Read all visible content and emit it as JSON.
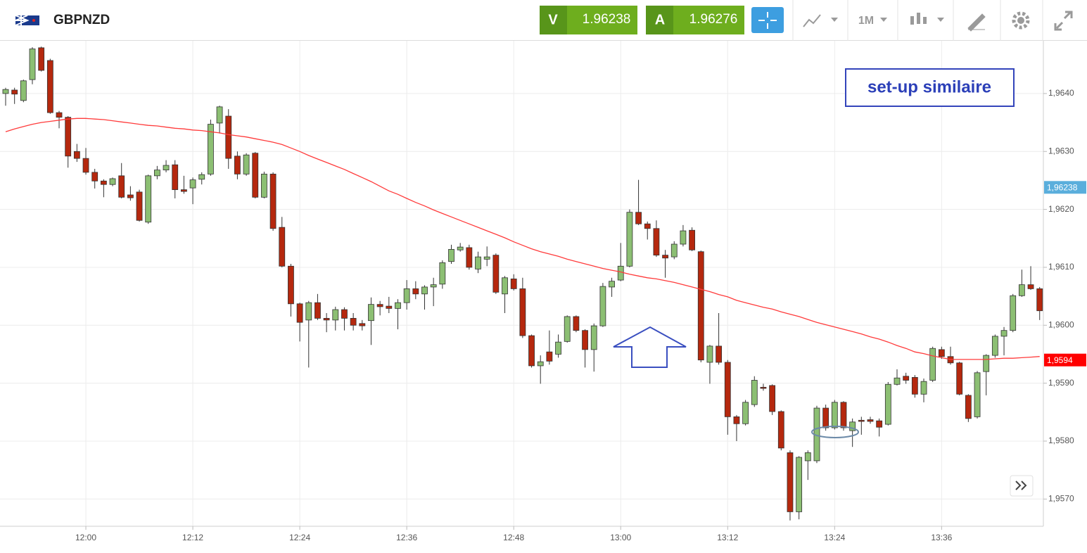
{
  "header": {
    "symbol": "GBPNZD",
    "sell_label": "V",
    "sell_price": 1.96238,
    "buy_label": "A",
    "buy_price": 1.96276,
    "timeframe": "1M"
  },
  "chart_data": {
    "type": "candlestick",
    "annotation": "set-up similaire",
    "categories": [
      null,
      null,
      null,
      null,
      null,
      null,
      null,
      null,
      null,
      "12:00",
      null,
      null,
      null,
      null,
      null,
      null,
      null,
      null,
      null,
      null,
      null,
      "12:12",
      null,
      null,
      null,
      null,
      null,
      null,
      null,
      null,
      null,
      null,
      null,
      "12:24",
      null,
      null,
      null,
      null,
      null,
      null,
      null,
      null,
      null,
      null,
      null,
      "12:36",
      null,
      null,
      null,
      null,
      null,
      null,
      null,
      null,
      null,
      null,
      null,
      "12:48",
      null,
      null,
      null,
      null,
      null,
      null,
      null,
      null,
      null,
      null,
      null,
      "13:00",
      null,
      null,
      null,
      null,
      null,
      null,
      null,
      null,
      null,
      null,
      null,
      "13:12",
      null,
      null,
      null,
      null,
      null,
      null,
      null,
      null,
      null,
      null,
      null,
      "13:24",
      null,
      null,
      null,
      null,
      null,
      null,
      null,
      null,
      null,
      null,
      null,
      "13:36",
      null,
      null,
      null,
      null,
      null,
      null,
      null,
      null,
      null,
      null,
      null
    ],
    "open": [
      1.964,
      1.96406,
      1.96388,
      1.96424,
      1.96479,
      1.96457,
      1.96367,
      1.96359,
      1.963,
      1.96288,
      1.96264,
      1.96249,
      1.96243,
      1.96258,
      1.96225,
      1.9623,
      1.96178,
      1.96258,
      1.96268,
      1.96277,
      1.96234,
      1.96237,
      1.96252,
      1.96261,
      1.96349,
      1.96361,
      1.96292,
      1.96261,
      1.96297,
      1.96221,
      1.96261,
      1.96169,
      1.96102,
      1.96037,
      1.96009,
      1.96039,
      1.96012,
      1.96009,
      1.96027,
      1.96012,
      1.96003,
      1.96008,
      1.96036,
      1.96033,
      1.96029,
      1.96039,
      1.96063,
      1.96054,
      1.96066,
      1.96071,
      1.9611,
      1.9613,
      1.96134,
      1.96097,
      1.96114,
      1.96121,
      1.96054,
      1.9608,
      1.96063,
      1.95982,
      1.9593,
      1.95954,
      1.9595,
      1.95972,
      1.96015,
      1.95991,
      1.95958,
      1.95999,
      1.96066,
      1.96078,
      1.96102,
      1.96195,
      1.96175,
      1.96167,
      1.96121,
      1.96118,
      1.9614,
      1.96164,
      1.96127,
      1.95936,
      1.95964,
      1.95936,
      1.95842,
      1.9583,
      1.95863,
      1.95893,
      1.95896,
      1.95851,
      1.9578,
      1.95678,
      1.95766,
      1.95766,
      1.95857,
      1.95823,
      1.95867,
      1.95818,
      1.95836,
      1.95837,
      1.95835,
      1.95829,
      1.95898,
      1.95912,
      1.9591,
      1.95881,
      1.95905,
      1.95958,
      1.95946,
      1.95935,
      1.95879,
      1.95842,
      1.9592,
      1.95948,
      1.95981,
      1.95991,
      1.96051,
      1.9607,
      1.96063
    ],
    "high": [
      1.9641,
      1.9641,
      1.96424,
      1.9648,
      1.96481,
      1.9646,
      1.9637,
      1.96361,
      1.96313,
      1.96306,
      1.9627,
      1.96252,
      1.96255,
      1.9628,
      1.9624,
      1.96234,
      1.9626,
      1.96275,
      1.96285,
      1.96285,
      1.96258,
      1.96255,
      1.96264,
      1.96355,
      1.96379,
      1.96373,
      1.963,
      1.96297,
      1.96299,
      1.96265,
      1.96264,
      1.96187,
      1.96106,
      1.96039,
      1.96042,
      1.96054,
      1.96021,
      1.96032,
      1.96031,
      1.96021,
      1.96009,
      1.96048,
      1.96042,
      1.96049,
      1.96045,
      1.96078,
      1.96076,
      1.96069,
      1.96082,
      1.96112,
      1.96139,
      1.96142,
      1.96139,
      1.96127,
      1.96136,
      1.96124,
      1.96085,
      1.96088,
      1.96082,
      1.95984,
      1.95948,
      1.95991,
      1.95984,
      1.96017,
      1.96017,
      1.95993,
      1.96003,
      1.96073,
      1.96082,
      1.96142,
      1.962,
      1.96251,
      1.96179,
      1.96181,
      1.9613,
      1.96145,
      1.96173,
      1.96169,
      1.96129,
      1.95966,
      1.96021,
      1.9594,
      1.95845,
      1.95871,
      1.95912,
      1.95899,
      1.95898,
      1.95853,
      1.95784,
      1.95774,
      1.95784,
      1.95861,
      1.95863,
      1.95871,
      1.95869,
      1.95839,
      1.95842,
      1.95842,
      1.95839,
      1.95902,
      1.95924,
      1.95918,
      1.95914,
      1.95908,
      1.95963,
      1.95963,
      1.95963,
      1.95937,
      1.95881,
      1.95921,
      1.9595,
      1.95984,
      1.95997,
      1.96054,
      1.96096,
      1.96102,
      1.96066
    ],
    "low": [
      1.96379,
      1.96382,
      1.96385,
      1.96416,
      1.96438,
      1.96365,
      1.9634,
      1.96272,
      1.96282,
      1.9626,
      1.96236,
      1.96221,
      1.9624,
      1.96219,
      1.96215,
      1.96179,
      1.96175,
      1.96252,
      1.96264,
      1.96219,
      1.96227,
      1.96209,
      1.96243,
      1.96258,
      1.96331,
      1.9627,
      1.96252,
      1.96258,
      1.96219,
      1.96219,
      1.96163,
      1.961,
      1.96015,
      1.95972,
      1.95927,
      1.96009,
      1.95988,
      1.95991,
      1.95991,
      1.95991,
      1.95991,
      1.95966,
      1.96017,
      1.96021,
      1.95993,
      1.96027,
      1.96045,
      1.96027,
      1.96033,
      1.96063,
      1.96106,
      1.96127,
      1.96096,
      1.9609,
      1.96102,
      1.96054,
      1.96021,
      1.9606,
      1.95978,
      1.95927,
      1.95899,
      1.95932,
      1.95944,
      1.9597,
      1.95988,
      1.95927,
      1.9592,
      1.95997,
      1.96049,
      1.96076,
      1.961,
      1.96173,
      1.96148,
      1.96118,
      1.96082,
      1.96114,
      1.96136,
      1.96128,
      1.95936,
      1.95899,
      1.95932,
      1.95811,
      1.958,
      1.95827,
      1.95859,
      1.95887,
      1.95845,
      1.95784,
      1.95663,
      1.95665,
      1.95733,
      1.95762,
      1.95818,
      1.9582,
      1.95818,
      1.9579,
      1.95811,
      1.9583,
      1.95808,
      1.95827,
      1.95896,
      1.95899,
      1.95875,
      1.95867,
      1.95902,
      1.95942,
      1.95932,
      1.95879,
      1.95833,
      1.95839,
      1.95879,
      1.95944,
      1.95948,
      1.95988,
      1.96049,
      1.96061,
      1.96009
    ],
    "close": [
      1.96407,
      1.96399,
      1.96422,
      1.96477,
      1.9644,
      1.96367,
      1.96359,
      1.96292,
      1.96288,
      1.96264,
      1.96249,
      1.96243,
      1.96253,
      1.96221,
      1.9622,
      1.96181,
      1.96258,
      1.96268,
      1.96276,
      1.96234,
      1.96231,
      1.96251,
      1.9626,
      1.96347,
      1.96377,
      1.96288,
      1.96261,
      1.96294,
      1.96221,
      1.96261,
      1.96167,
      1.96102,
      1.96037,
      1.96005,
      1.96039,
      1.96012,
      1.96009,
      1.96027,
      1.96012,
      1.96,
      1.95999,
      1.96036,
      1.96032,
      1.96029,
      1.96039,
      1.96063,
      1.96054,
      1.96066,
      1.9607,
      1.96108,
      1.96131,
      1.96135,
      1.961,
      1.96118,
      1.96118,
      1.96057,
      1.96082,
      1.96063,
      1.95982,
      1.9593,
      1.95937,
      1.95938,
      1.95971,
      1.96015,
      1.95991,
      1.95958,
      1.95999,
      1.96067,
      1.96076,
      1.96102,
      1.96195,
      1.96175,
      1.96167,
      1.96121,
      1.96116,
      1.9614,
      1.96163,
      1.9613,
      1.9594,
      1.95964,
      1.95936,
      1.95842,
      1.9583,
      1.95867,
      1.95905,
      1.95891,
      1.95851,
      1.95788,
      1.95678,
      1.95772,
      1.9578,
      1.95857,
      1.95823,
      1.95867,
      1.95823,
      1.95833,
      1.95834,
      1.95834,
      1.95824,
      1.95898,
      1.95909,
      1.95905,
      1.95881,
      1.95903,
      1.9596,
      1.95946,
      1.95935,
      1.95881,
      1.95839,
      1.95918,
      1.95948,
      1.95981,
      1.95991,
      1.96051,
      1.9607,
      1.96063,
      1.96025
    ],
    "up_color": "#8cbf73",
    "down_color": "#b5280e",
    "overlay": {
      "color": "#ff3b3b",
      "values": [
        1.96334,
        1.96339,
        1.96343,
        1.96347,
        1.9635,
        1.96352,
        1.96354,
        1.96356,
        1.96357,
        1.96357,
        1.96356,
        1.96355,
        1.96353,
        1.96351,
        1.96349,
        1.96347,
        1.96345,
        1.96344,
        1.96342,
        1.9634,
        1.96339,
        1.96337,
        1.96336,
        1.96334,
        1.96332,
        1.96329,
        1.96327,
        1.96325,
        1.96322,
        1.96319,
        1.96316,
        1.96312,
        1.96306,
        1.963,
        1.96293,
        1.96287,
        1.96281,
        1.96275,
        1.96269,
        1.96262,
        1.96255,
        1.96248,
        1.9624,
        1.96232,
        1.96226,
        1.96219,
        1.96212,
        1.96206,
        1.96199,
        1.96193,
        1.96187,
        1.96181,
        1.96175,
        1.96169,
        1.96163,
        1.96157,
        1.96151,
        1.96144,
        1.96138,
        1.96132,
        1.96127,
        1.96123,
        1.96119,
        1.96114,
        1.9611,
        1.96106,
        1.96102,
        1.96098,
        1.96095,
        1.96092,
        1.96088,
        1.96085,
        1.96082,
        1.9608,
        1.96077,
        1.96074,
        1.9607,
        1.96066,
        1.96062,
        1.96058,
        1.96053,
        1.96049,
        1.96043,
        1.96039,
        1.96035,
        1.96031,
        1.96028,
        1.96023,
        1.96019,
        1.96015,
        1.9601,
        1.96005,
        1.96001,
        1.95997,
        1.95993,
        1.95989,
        1.95985,
        1.9598,
        1.95976,
        1.95971,
        1.95965,
        1.9596,
        1.95954,
        1.95951,
        1.95947,
        1.95944,
        1.95941,
        1.95941,
        1.95941,
        1.95941,
        1.95941,
        1.95942,
        1.95943,
        1.95943,
        1.95944,
        1.95945,
        1.95946
      ]
    },
    "ylim": [
      1.95653,
      1.96491
    ],
    "yticks": [
      {
        "value": 1.957,
        "label": "1,9570"
      },
      {
        "value": 1.958,
        "label": "1,9580"
      },
      {
        "value": 1.959,
        "label": "1,9590"
      },
      {
        "value": 1.96,
        "label": "1,9600"
      },
      {
        "value": 1.961,
        "label": "1,9610"
      },
      {
        "value": 1.962,
        "label": "1,9620"
      },
      {
        "value": 1.963,
        "label": "1,9630"
      },
      {
        "value": 1.964,
        "label": "1,9640"
      }
    ],
    "price_tags": [
      {
        "value": 1.96238,
        "label": "1,96238",
        "color": "#5aaedc"
      },
      {
        "value": 1.9594,
        "label": "1,9594",
        "color": "#ff0000"
      }
    ],
    "grid": true
  }
}
